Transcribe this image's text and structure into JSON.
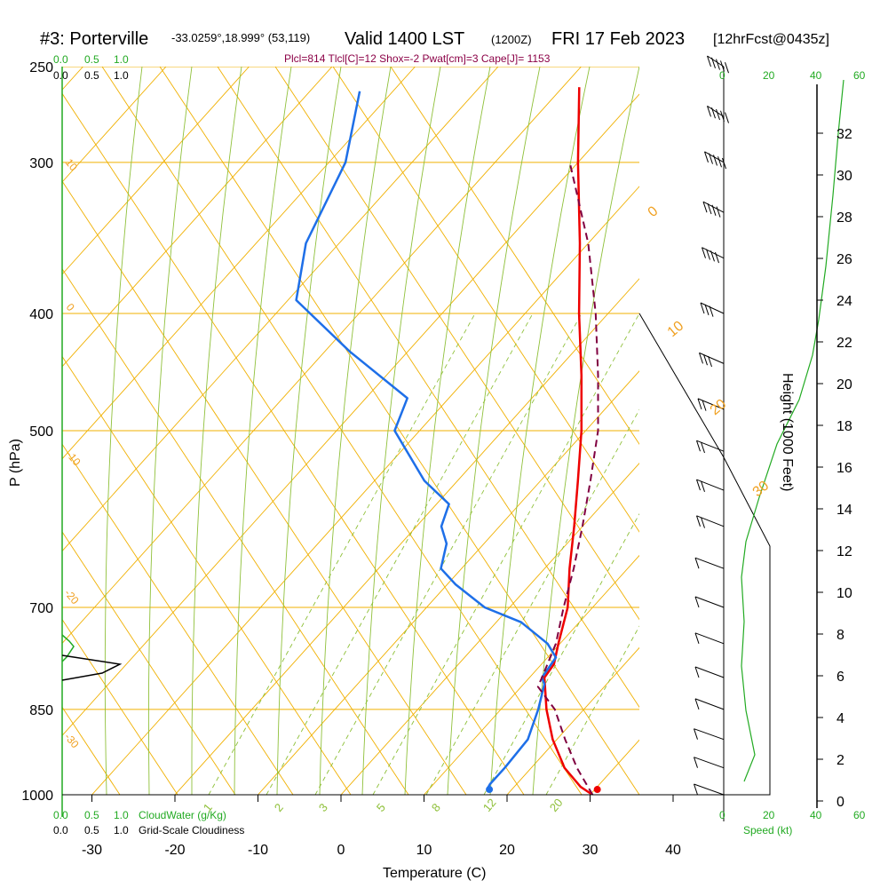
{
  "header": {
    "station": "#3: Porterville",
    "coords": "-33.0259°,18.999° (53,119)",
    "valid": "Valid 1400 LST",
    "utc": "(1200Z)",
    "date": "FRI 17 Feb 2023",
    "forecast": "[12hrFcst@0435z]",
    "indices": "Plcl=814 Tlcl[C]=12 Shox=-2 Pwat[cm]=3 Cape[J]= 1153"
  },
  "labels": {
    "xlabel": "Temperature (C)",
    "ylabel": "P (hPa)",
    "height_label": "Height (1000 Feet)",
    "speed_label": "Speed (kt)",
    "cloudwater_label": "CloudWater (g/Kg)",
    "cloudiness_label": "Grid-Scale Cloudiness"
  },
  "colors": {
    "temperature": "#ee0000",
    "dewpoint": "#1e6fe8",
    "parcel": "#800040",
    "isobar": "#f0b000",
    "isotherm": "#f0b000",
    "dry_adiabat": "#f0b000",
    "moist_adiabat": "#8fc03a",
    "mixing_ratio": "#8fc03a",
    "cloudwater": "#22aa22",
    "height_curve": "#22aa22"
  },
  "chart_data": {
    "type": "line",
    "diagram": "skew-T log-P",
    "pressure_range_hpa": [
      1000,
      250
    ],
    "temperature_range_c": [
      -30,
      40
    ],
    "x_ticks": [
      -30,
      -20,
      -10,
      0,
      10,
      20,
      30,
      40
    ],
    "y_ticks": [
      250,
      300,
      400,
      500,
      700,
      850,
      1000
    ],
    "isotherm_labels": [
      {
        "value": "0",
        "at_pressure": 330
      },
      {
        "value": "10",
        "at_pressure": 420
      },
      {
        "value": "20",
        "at_pressure": 490
      },
      {
        "value": "30",
        "at_pressure": 570
      },
      {
        "value": "10",
        "at_pressure": 300,
        "side": "left"
      },
      {
        "value": "0",
        "at_pressure": 400,
        "side": "left"
      },
      {
        "value": "-10",
        "at_pressure": 520,
        "side": "left"
      },
      {
        "value": "-20",
        "at_pressure": 680,
        "side": "left"
      },
      {
        "value": "-30",
        "at_pressure": 890,
        "side": "left"
      }
    ],
    "mixing_ratio_labels": [
      "1",
      "2",
      "3",
      "5",
      "8",
      "12",
      "20"
    ],
    "series": [
      {
        "name": "Temperature",
        "points": [
          [
            1000,
            30.3
          ],
          [
            985,
            28.0
          ],
          [
            950,
            24.0
          ],
          [
            900,
            19.5
          ],
          [
            850,
            15.5
          ],
          [
            800,
            11.8
          ],
          [
            780,
            11.5
          ],
          [
            750,
            9.8
          ],
          [
            700,
            7.0
          ],
          [
            650,
            3.0
          ],
          [
            600,
            -1.0
          ],
          [
            550,
            -5.5
          ],
          [
            500,
            -10.5
          ],
          [
            450,
            -16.5
          ],
          [
            400,
            -23.5
          ],
          [
            350,
            -31.0
          ],
          [
            300,
            -40.0
          ],
          [
            260,
            -48.0
          ]
        ]
      },
      {
        "name": "Dewpoint",
        "points": [
          [
            990,
            17.0
          ],
          [
            980,
            16.8
          ],
          [
            950,
            16.8
          ],
          [
            900,
            16.5
          ],
          [
            850,
            14.5
          ],
          [
            810,
            12.5
          ],
          [
            800,
            11.5
          ],
          [
            770,
            11.0
          ],
          [
            750,
            8.5
          ],
          [
            720,
            3.0
          ],
          [
            700,
            -3.0
          ],
          [
            670,
            -9.0
          ],
          [
            650,
            -12.5
          ],
          [
            620,
            -14.5
          ],
          [
            600,
            -17.0
          ],
          [
            575,
            -18.5
          ],
          [
            550,
            -24.0
          ],
          [
            500,
            -33.0
          ],
          [
            470,
            -35.0
          ],
          [
            430,
            -47.0
          ],
          [
            390,
            -59.0
          ],
          [
            350,
            -64.0
          ],
          [
            300,
            -68.0
          ],
          [
            262,
            -74.0
          ]
        ]
      },
      {
        "name": "Parcel",
        "points": [
          [
            1000,
            30.3
          ],
          [
            950,
            25.5
          ],
          [
            900,
            21.0
          ],
          [
            850,
            16.5
          ],
          [
            814,
            12.0
          ],
          [
            800,
            11.5
          ],
          [
            750,
            9.5
          ],
          [
            700,
            6.5
          ],
          [
            650,
            3.5
          ],
          [
            600,
            0.0
          ],
          [
            550,
            -4.0
          ],
          [
            500,
            -8.5
          ],
          [
            450,
            -14.5
          ],
          [
            400,
            -21.5
          ],
          [
            350,
            -30.0
          ],
          [
            300,
            -41.0
          ]
        ]
      }
    ],
    "surface_dewpoint_marker": {
      "pressure": 990,
      "temperature": 17.3
    },
    "surface_temperature_marker": {
      "pressure": 990,
      "temperature": 30.3
    },
    "height_axis": {
      "ticks": [
        0,
        2,
        4,
        6,
        8,
        10,
        12,
        14,
        16,
        18,
        20,
        22,
        24,
        26,
        28,
        30,
        32
      ]
    },
    "speed_axis": {
      "ticks": [
        0,
        20,
        40,
        60
      ]
    },
    "cloud_axis": {
      "ticks": [
        "0.0",
        "0.5",
        "1.0"
      ]
    },
    "wind_barbs": [
      {
        "pressure": 250,
        "speed_kt": 55
      },
      {
        "pressure": 275,
        "speed_kt": 55
      },
      {
        "pressure": 300,
        "speed_kt": 45
      },
      {
        "pressure": 330,
        "speed_kt": 40
      },
      {
        "pressure": 360,
        "speed_kt": 35
      },
      {
        "pressure": 400,
        "speed_kt": 30
      },
      {
        "pressure": 440,
        "speed_kt": 25
      },
      {
        "pressure": 480,
        "speed_kt": 20
      },
      {
        "pressure": 520,
        "speed_kt": 15
      },
      {
        "pressure": 560,
        "speed_kt": 15
      },
      {
        "pressure": 600,
        "speed_kt": 15
      },
      {
        "pressure": 650,
        "speed_kt": 10
      },
      {
        "pressure": 700,
        "speed_kt": 10
      },
      {
        "pressure": 750,
        "speed_kt": 10
      },
      {
        "pressure": 800,
        "speed_kt": 10
      },
      {
        "pressure": 850,
        "speed_kt": 10
      },
      {
        "pressure": 900,
        "speed_kt": 5
      },
      {
        "pressure": 950,
        "speed_kt": 5
      },
      {
        "pressure": 1000,
        "speed_kt": 5
      }
    ],
    "grid": true
  }
}
